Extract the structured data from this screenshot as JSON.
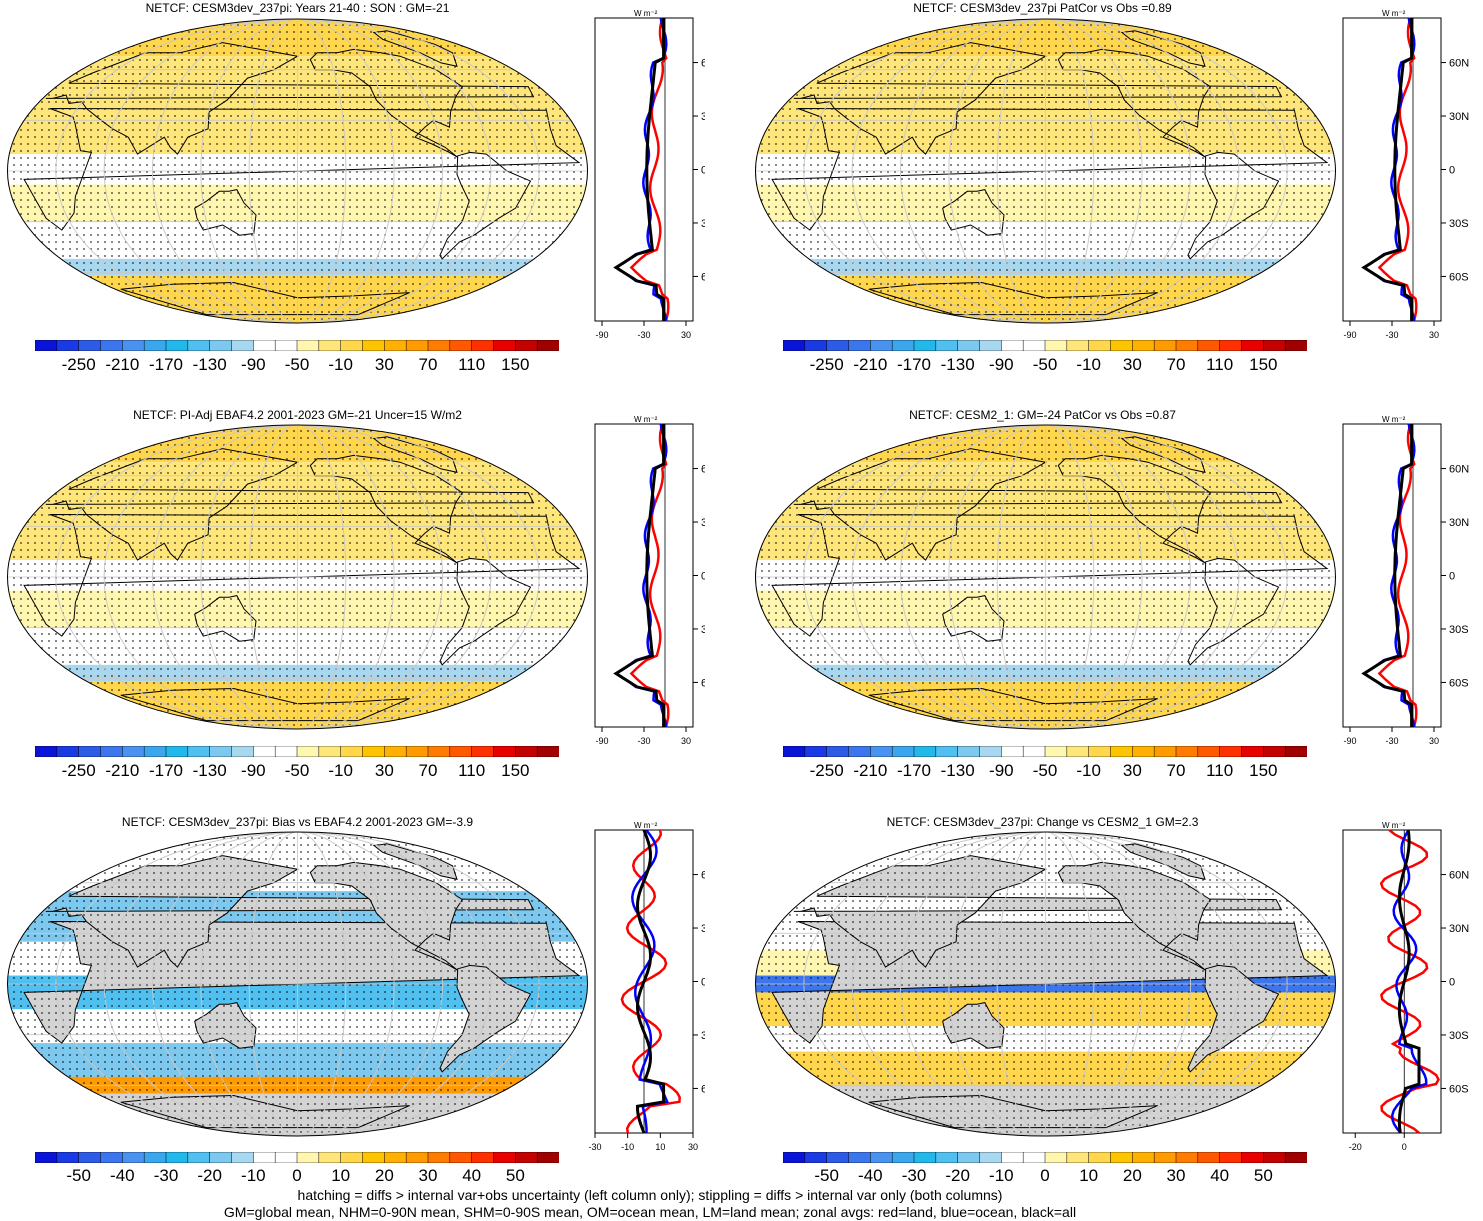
{
  "panels": [
    {
      "title": "NETCF: CESM3dev_237pi: Years 21-40 : SON : GM=-21",
      "style": "abs"
    },
    {
      "title": "NETCF: CESM3dev_237pi PatCor vs Obs =0.89",
      "style": "abs"
    },
    {
      "title": "NETCF: PI-Adj EBAF4.2 2001-2023 GM=-21 Uncer=15 W/m2",
      "style": "abs"
    },
    {
      "title": "NETCF: CESM2_1: GM=-24 PatCor vs Obs =0.87",
      "style": "abs"
    },
    {
      "title": "NETCF: CESM3dev_237pi: Bias vs EBAF4.2 2001-2023  GM=-3.9",
      "style": "bias"
    },
    {
      "title": "NETCF: CESM3dev_237pi: Change vs CESM2_1 GM=2.3",
      "style": "change"
    }
  ],
  "colorbars": {
    "abs": {
      "labels": [
        "-250",
        "-210",
        "-170",
        "-130",
        "-90",
        "-50",
        "-10",
        "30",
        "70",
        "110",
        "150"
      ],
      "colors": [
        "#0a14d8",
        "#1a3ae6",
        "#2c5be8",
        "#3c76ee",
        "#4a92f0",
        "#3aa6ee",
        "#22b8ec",
        "#50c0f0",
        "#7cc8ee",
        "#a8d8f0",
        "#ffffff",
        "#ffffff",
        "#fff6b0",
        "#ffe67a",
        "#ffd64c",
        "#ffc400",
        "#ffb000",
        "#ff9a00",
        "#ff7c00",
        "#ff5800",
        "#ff3000",
        "#e80000",
        "#c40000",
        "#a00000"
      ]
    },
    "diff": {
      "labels": [
        "-50",
        "-40",
        "-30",
        "-20",
        "-10",
        "0",
        "10",
        "20",
        "30",
        "40",
        "50"
      ],
      "colors": [
        "#0a14d8",
        "#1a3ae6",
        "#2c5be8",
        "#3c76ee",
        "#4a92f0",
        "#3aa6ee",
        "#22b8ec",
        "#50c0f0",
        "#7cc8ee",
        "#a8d8f0",
        "#ffffff",
        "#ffffff",
        "#fff6b0",
        "#ffe67a",
        "#ffd64c",
        "#ffc400",
        "#ffb000",
        "#ff9a00",
        "#ff7c00",
        "#ff5800",
        "#ff3000",
        "#e80000",
        "#c40000",
        "#a00000"
      ]
    }
  },
  "zonal": {
    "unit": "W m⁻²",
    "lat_labels": [
      "60N",
      "30N",
      "0",
      "30S",
      "60S"
    ],
    "abs_xticks": [
      "-90",
      "-30",
      "30"
    ],
    "bias_xticks": [
      "-30",
      "-10",
      "10",
      "30"
    ],
    "change_xticks": [
      "-20",
      "0"
    ],
    "line_colors": {
      "land": "#ff0000",
      "ocean": "#0000ff",
      "all": "#000000"
    }
  },
  "footer": {
    "line1": "hatching = diffs > internal var+obs uncertainty (left column only); stippling = diffs > internal var only (both columns)",
    "line2": "GM=global mean, NHM=0-90N mean, SHM=0-90S mean, OM=ocean mean, LM=land mean; zonal avgs: red=land, blue=ocean, black=all"
  }
}
